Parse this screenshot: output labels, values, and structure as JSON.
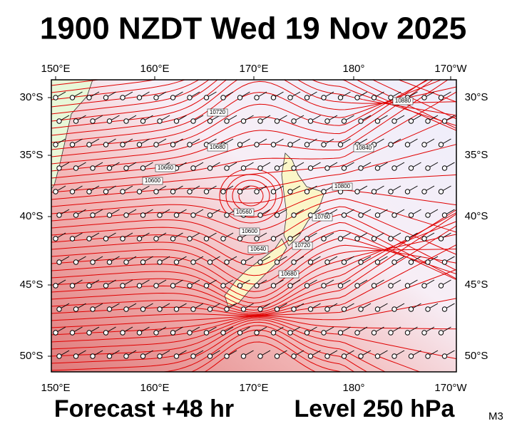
{
  "header": {
    "title": "1900 NZDT Wed 19 Nov 2025"
  },
  "map": {
    "top_labels": [
      "150°E",
      "160°E",
      "170°E",
      "180°",
      "170°W"
    ],
    "bottom_labels": [
      "150°E",
      "160°E",
      "170°E",
      "180°",
      "170°W"
    ],
    "left_labels": [
      "30°S",
      "35°S",
      "40°S",
      "45°S",
      "50°S"
    ],
    "right_labels": [
      "30°S",
      "35°S",
      "40°S",
      "45°S",
      "50°S"
    ],
    "contour_labels": [
      "10720",
      "10680",
      "10660",
      "10600",
      "10560",
      "10880",
      "10840",
      "10800",
      "10760",
      "10720",
      "10680",
      "10640",
      "10600"
    ]
  },
  "footer": {
    "forecast": "Forecast +48 hr",
    "level": "Level 250 hPa",
    "code": "M3"
  }
}
